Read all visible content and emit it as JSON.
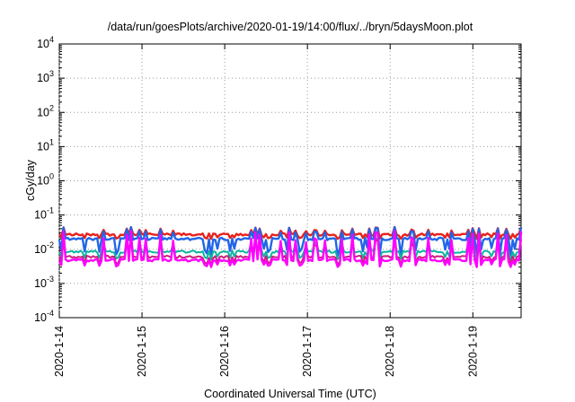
{
  "chart_data": {
    "type": "line",
    "title": "/data/run/goesPlots/archive/2020-01-19/14:00/flux/../bryn/5daysMoon.plot",
    "xlabel": "Coordinated Universal Time (UTC)",
    "ylabel": "cGy/day",
    "yscale": "log",
    "ylim": [
      0.0001,
      10000
    ],
    "xlim": [
      "2020-01-14 00:00",
      "2020-01-19 14:00"
    ],
    "grid": true,
    "legend": "none",
    "x_ticks": [
      "2020-1-14",
      "2020-1-15",
      "2020-1-16",
      "2020-1-17",
      "2020-1-18",
      "2020-1-19"
    ],
    "y_ticks": [
      {
        "base": "10",
        "exp": "-4",
        "value": 0.0001
      },
      {
        "base": "10",
        "exp": "-3",
        "value": 0.001
      },
      {
        "base": "10",
        "exp": "-2",
        "value": 0.01
      },
      {
        "base": "10",
        "exp": "-1",
        "value": 0.1
      },
      {
        "base": "10",
        "exp": "0",
        "value": 1
      },
      {
        "base": "10",
        "exp": "1",
        "value": 10
      },
      {
        "base": "10",
        "exp": "2",
        "value": 100
      },
      {
        "base": "10",
        "exp": "3",
        "value": 1000
      },
      {
        "base": "10",
        "exp": "4",
        "value": 10000
      }
    ],
    "series": [
      {
        "color": "#e8211c",
        "baseline": 0.027,
        "spike_max": 0.045,
        "dip_min": 0.02
      },
      {
        "color": "#2166e8",
        "baseline": 0.02,
        "spike_max": 0.045,
        "dip_min": 0.006
      },
      {
        "color": "#0bb5a2",
        "baseline": 0.0085,
        "spike_max": 0.022,
        "dip_min": 0.005
      },
      {
        "color": "#cc1d7e",
        "baseline": 0.006,
        "spike_max": 0.02,
        "dip_min": 0.0035
      },
      {
        "color": "#ff00ff",
        "baseline": 0.0048,
        "spike_max": 0.035,
        "dip_min": 0.003
      }
    ]
  }
}
